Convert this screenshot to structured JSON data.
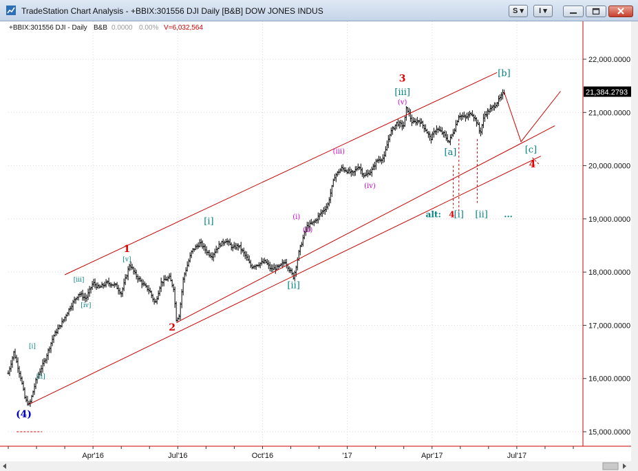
{
  "window": {
    "title": "TradeStation Chart Analysis - +BBIX:301556 DJI Daily [B&B] DOW JONES INDUS",
    "buttons": {
      "style": "S",
      "info": "I"
    }
  },
  "header": {
    "symbol": "+BBIX:301556 DJI - Daily",
    "provider": "B&B",
    "change": "0.0000",
    "change_pct": "0.00%",
    "volume": "V=6,032,564"
  },
  "colors": {
    "price_bars": "#000000",
    "channel": "#cc0000",
    "primary_wave": "#e00000",
    "minor_wave": "#008080",
    "minute_wave": "#cc00cc",
    "intermediate_wave": "#0000cc",
    "last_price_box": "#000000"
  },
  "chart_data": {
    "type": "bar",
    "series_name": "DJI Daily",
    "x_axis": {
      "tick_labels": [
        "Apr'16",
        "Jul'16",
        "Oct'16",
        "'17",
        "Apr'17",
        "Jul'17"
      ],
      "tick_positions_month": [
        3,
        6,
        9,
        12,
        15,
        18
      ]
    },
    "y_axis": {
      "range": [
        14800,
        22600
      ],
      "tick_labels": [
        "22,000.0000",
        "21,000.0000",
        "20,000.0000",
        "19,000.0000",
        "18,000.0000",
        "17,000.0000",
        "16,000.0000",
        "15,000.0000"
      ],
      "tick_values": [
        22000,
        21000,
        20000,
        19000,
        18000,
        17000,
        16000,
        15000
      ]
    },
    "last_price": {
      "label": "21,384.2793",
      "value": 21384.28
    },
    "price_path_months_value": [
      [
        0.0,
        16100
      ],
      [
        0.2,
        16500
      ],
      [
        0.45,
        16000
      ],
      [
        0.6,
        15600
      ],
      [
        0.75,
        15500
      ],
      [
        1.0,
        16000
      ],
      [
        1.3,
        16350
      ],
      [
        1.6,
        16800
      ],
      [
        1.9,
        17050
      ],
      [
        2.2,
        17350
      ],
      [
        2.5,
        17600
      ],
      [
        2.75,
        17500
      ],
      [
        3.0,
        17800
      ],
      [
        3.2,
        17700
      ],
      [
        3.5,
        17800
      ],
      [
        3.8,
        17750
      ],
      [
        4.0,
        17600
      ],
      [
        4.3,
        18150
      ],
      [
        4.5,
        17950
      ],
      [
        4.8,
        17750
      ],
      [
        5.0,
        17650
      ],
      [
        5.2,
        17400
      ],
      [
        5.4,
        17800
      ],
      [
        5.7,
        17900
      ],
      [
        5.85,
        17700
      ],
      [
        5.95,
        17100
      ],
      [
        6.05,
        17200
      ],
      [
        6.2,
        17900
      ],
      [
        6.5,
        18400
      ],
      [
        6.8,
        18550
      ],
      [
        7.0,
        18400
      ],
      [
        7.2,
        18300
      ],
      [
        7.45,
        18500
      ],
      [
        7.7,
        18600
      ],
      [
        7.95,
        18450
      ],
      [
        8.15,
        18500
      ],
      [
        8.4,
        18300
      ],
      [
        8.6,
        18100
      ],
      [
        8.85,
        18150
      ],
      [
        9.1,
        18200
      ],
      [
        9.3,
        18050
      ],
      [
        9.6,
        18100
      ],
      [
        9.8,
        18200
      ],
      [
        10.0,
        18000
      ],
      [
        10.1,
        17900
      ],
      [
        10.3,
        18400
      ],
      [
        10.55,
        18850
      ],
      [
        10.85,
        18950
      ],
      [
        11.05,
        19100
      ],
      [
        11.3,
        19250
      ],
      [
        11.55,
        19800
      ],
      [
        11.8,
        19950
      ],
      [
        12.0,
        19900
      ],
      [
        12.2,
        19850
      ],
      [
        12.4,
        20000
      ],
      [
        12.6,
        19800
      ],
      [
        12.85,
        19900
      ],
      [
        13.05,
        20100
      ],
      [
        13.3,
        20150
      ],
      [
        13.5,
        20600
      ],
      [
        13.75,
        20800
      ],
      [
        14.0,
        20750
      ],
      [
        14.1,
        21100
      ],
      [
        14.3,
        20800
      ],
      [
        14.55,
        20850
      ],
      [
        14.75,
        20700
      ],
      [
        14.95,
        20500
      ],
      [
        15.15,
        20700
      ],
      [
        15.4,
        20600
      ],
      [
        15.6,
        20450
      ],
      [
        15.8,
        20700
      ],
      [
        15.95,
        20950
      ],
      [
        16.2,
        20900
      ],
      [
        16.4,
        21000
      ],
      [
        16.6,
        20800
      ],
      [
        16.7,
        20600
      ],
      [
        16.85,
        20950
      ],
      [
        17.05,
        21050
      ],
      [
        17.25,
        21150
      ],
      [
        17.45,
        21300
      ],
      [
        17.55,
        21384
      ]
    ],
    "channel_lines": [
      {
        "from": [
          2.0,
          17950
        ],
        "to": [
          17.3,
          21750
        ]
      },
      {
        "from": [
          5.95,
          17050
        ],
        "to": [
          19.35,
          20750
        ]
      },
      {
        "from": [
          0.75,
          15520
        ],
        "to": [
          18.85,
          20180
        ]
      }
    ],
    "projection_path": [
      [
        17.55,
        21384
      ],
      [
        18.15,
        20450
      ],
      [
        19.55,
        21400
      ]
    ],
    "small_segment": {
      "from": [
        18.55,
        20150
      ],
      "to": [
        18.8,
        20020
      ]
    },
    "dotted_verticals": [
      {
        "x": 15.75,
        "from": 20000,
        "to": 19200
      },
      {
        "x": 15.95,
        "from": 20500,
        "to": 19100
      },
      {
        "x": 16.6,
        "from": 20500,
        "to": 19300
      }
    ],
    "dashed_h_segment": {
      "from": [
        0.3,
        15000
      ],
      "to": [
        1.2,
        15000
      ]
    },
    "annotations": [
      {
        "text": "1",
        "x": 4.2,
        "y": 18380,
        "color": "primary_wave",
        "size": 14,
        "bold": true
      },
      {
        "text": "2",
        "x": 5.8,
        "y": 16900,
        "color": "primary_wave",
        "size": 14,
        "bold": true
      },
      {
        "text": "3",
        "x": 13.95,
        "y": 21580,
        "color": "primary_wave",
        "size": 14,
        "bold": true
      },
      {
        "text": "4",
        "x": 18.55,
        "y": 19970,
        "color": "primary_wave",
        "size": 14,
        "bold": true
      },
      {
        "text": "4",
        "x": 15.7,
        "y": 19030,
        "color": "primary_wave",
        "size": 12,
        "bold": true
      },
      {
        "text": "(4)",
        "x": 0.55,
        "y": 15270,
        "color": "intermediate_wave",
        "size": 14,
        "bold": true
      },
      {
        "text": "[i]",
        "x": 7.1,
        "y": 18900,
        "color": "minor_wave",
        "size": 13,
        "bold": false
      },
      {
        "text": "[ii]",
        "x": 10.1,
        "y": 17700,
        "color": "minor_wave",
        "size": 13,
        "bold": false
      },
      {
        "text": "[iii]",
        "x": 13.95,
        "y": 21330,
        "color": "minor_wave",
        "size": 13,
        "bold": false
      },
      {
        "text": "[a]",
        "x": 15.65,
        "y": 20200,
        "color": "minor_wave",
        "size": 13,
        "bold": false
      },
      {
        "text": "[b]",
        "x": 17.55,
        "y": 21680,
        "color": "minor_wave",
        "size": 13,
        "bold": false
      },
      {
        "text": "[c]",
        "x": 18.5,
        "y": 20250,
        "color": "minor_wave",
        "size": 13,
        "bold": false
      },
      {
        "text": "[i]",
        "x": 15.95,
        "y": 19030,
        "color": "minor_wave",
        "size": 13,
        "bold": false
      },
      {
        "text": "[ii]",
        "x": 16.75,
        "y": 19030,
        "color": "minor_wave",
        "size": 13,
        "bold": false
      },
      {
        "text": "alt:",
        "x": 15.05,
        "y": 19030,
        "color": "minor_wave",
        "size": 12,
        "bold": true
      },
      {
        "text": "...",
        "x": 17.7,
        "y": 19030,
        "color": "minor_wave",
        "size": 12,
        "bold": true
      },
      {
        "text": "[i]",
        "x": 0.85,
        "y": 16570,
        "color": "minor_wave",
        "size": 9,
        "bold": false
      },
      {
        "text": "[ii]",
        "x": 1.15,
        "y": 16000,
        "color": "minor_wave",
        "size": 9,
        "bold": false
      },
      {
        "text": "[iii]",
        "x": 2.5,
        "y": 17820,
        "color": "minor_wave",
        "size": 9,
        "bold": false
      },
      {
        "text": "[iv]",
        "x": 2.75,
        "y": 17340,
        "color": "minor_wave",
        "size": 9,
        "bold": false
      },
      {
        "text": "[v]",
        "x": 4.2,
        "y": 18200,
        "color": "minor_wave",
        "size": 9,
        "bold": false
      },
      {
        "text": "(i)",
        "x": 10.2,
        "y": 19000,
        "color": "minute_wave",
        "size": 10,
        "bold": false
      },
      {
        "text": "(ii)",
        "x": 10.6,
        "y": 18750,
        "color": "minute_wave",
        "size": 10,
        "bold": false
      },
      {
        "text": "(iii)",
        "x": 11.7,
        "y": 20230,
        "color": "minute_wave",
        "size": 10,
        "bold": false
      },
      {
        "text": "(iv)",
        "x": 12.8,
        "y": 19580,
        "color": "minute_wave",
        "size": 10,
        "bold": false
      },
      {
        "text": "(v)",
        "x": 13.95,
        "y": 21150,
        "color": "minute_wave",
        "size": 10,
        "bold": false
      }
    ]
  }
}
